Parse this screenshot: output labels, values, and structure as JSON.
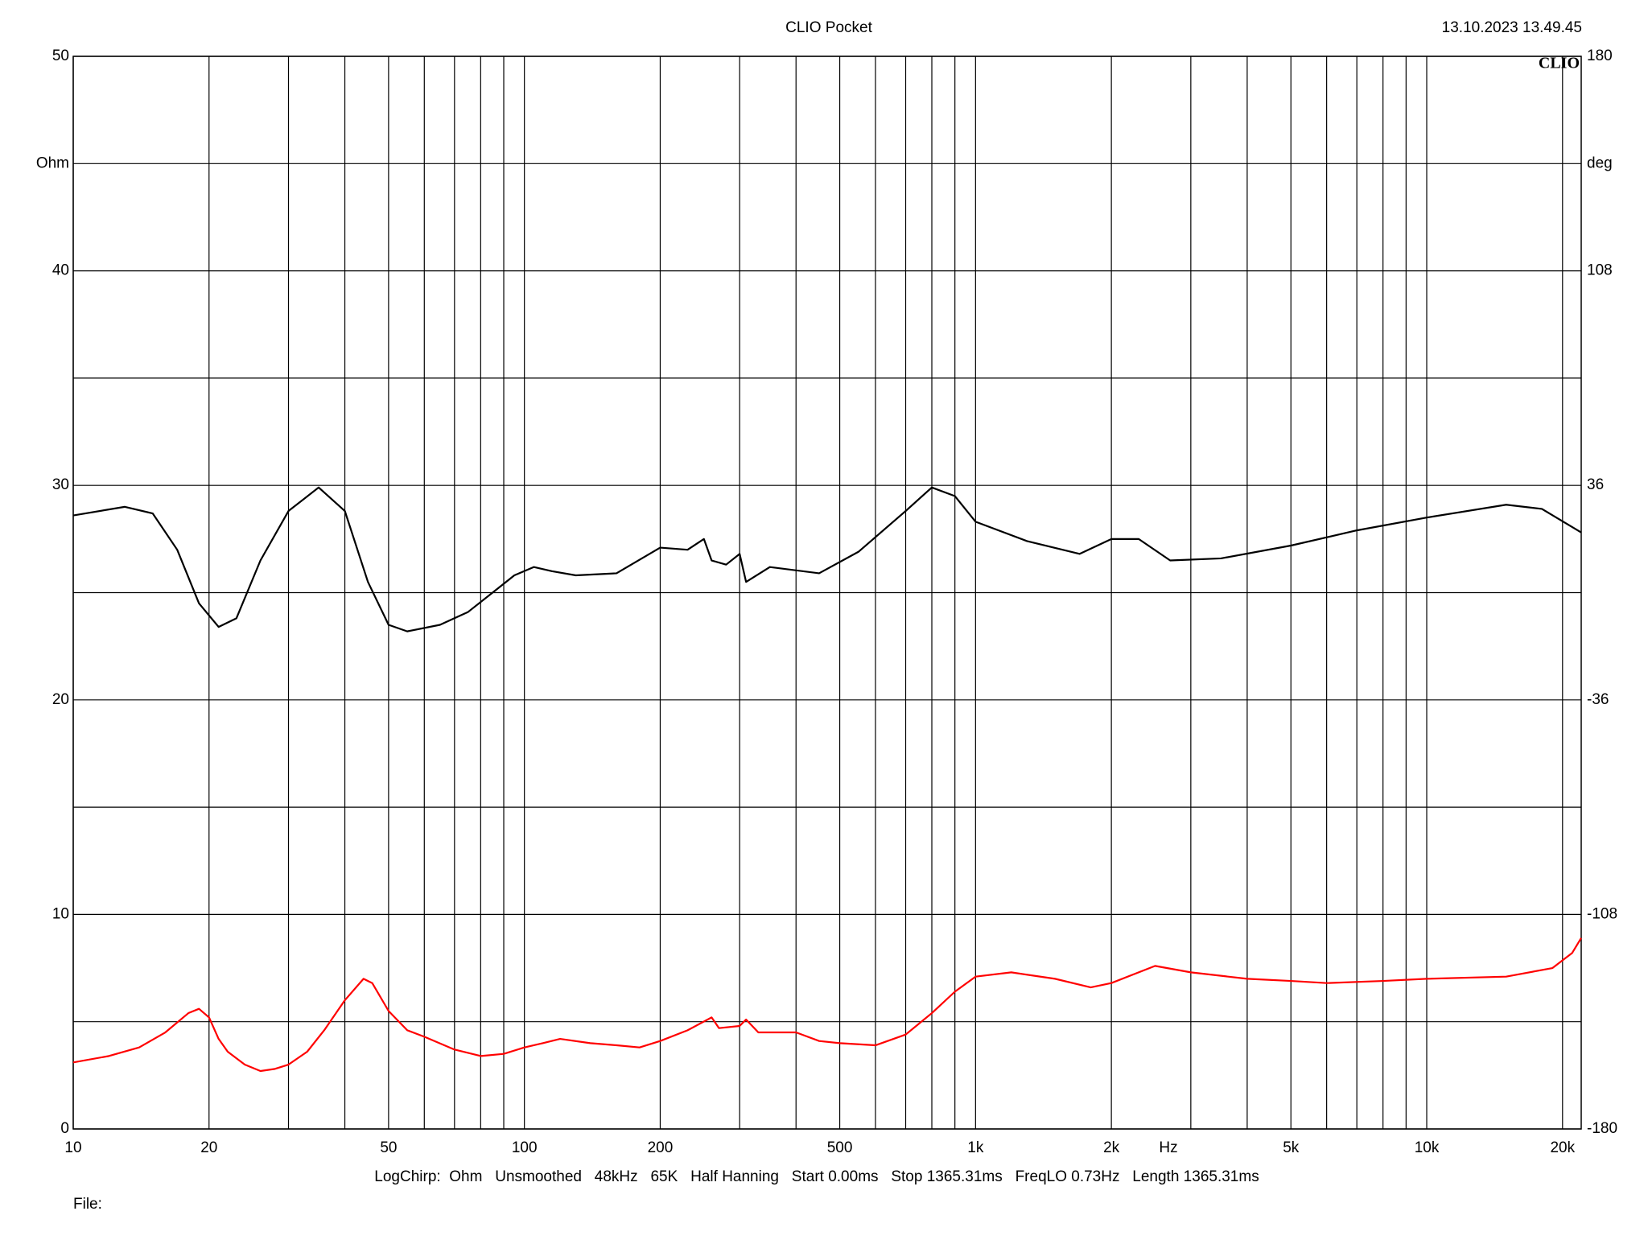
{
  "chart_data": {
    "type": "line",
    "title": "CLIO Pocket",
    "timestamp": "13.10.2023 13.49.45",
    "logo": "CLIO",
    "xlabel": "Hz",
    "ylabel": "Ohm",
    "y2label": "deg",
    "footer": "LogChirp:  Ohm   Unsmoothed   48kHz   65K   Half Hanning   Start 0.00ms   Stop 1365.31ms   FreqLO 0.73Hz   Length 1365.31ms",
    "file_label": "File:",
    "xscale": "log",
    "grid": true,
    "xlim": [
      10,
      22000
    ],
    "xticks": [
      10,
      20,
      50,
      100,
      200,
      500,
      {
        "value": 1000,
        "label": "1k"
      },
      {
        "value": 2000,
        "label": "2k"
      },
      {
        "value": 5000,
        "label": "5k"
      },
      {
        "value": 10000,
        "label": "10k"
      },
      {
        "value": 20000,
        "label": "20k"
      }
    ],
    "xgrid": [
      10,
      20,
      30,
      40,
      50,
      60,
      70,
      80,
      90,
      100,
      200,
      300,
      400,
      500,
      600,
      700,
      800,
      900,
      1000,
      2000,
      3000,
      4000,
      5000,
      6000,
      7000,
      8000,
      9000,
      10000,
      20000
    ],
    "ylim": [
      0,
      50
    ],
    "yticks": [
      0,
      10,
      20,
      30,
      40,
      50
    ],
    "ygrid": [
      5,
      15,
      25,
      35,
      45
    ],
    "y2lim": [
      -180,
      180
    ],
    "y2ticks": [
      -180,
      -108,
      -36,
      36,
      108,
      180
    ],
    "series": [
      {
        "color": "#ff0000",
        "axis": "y",
        "x": [
          10,
          12,
          14,
          16,
          18,
          19,
          20,
          21,
          22,
          24,
          26,
          28,
          30,
          33,
          36,
          40,
          44,
          46,
          50,
          55,
          60,
          70,
          80,
          90,
          100,
          110,
          120,
          140,
          160,
          180,
          200,
          230,
          260,
          270,
          300,
          310,
          330,
          400,
          450,
          500,
          600,
          700,
          800,
          900,
          1000,
          1200,
          1500,
          1800,
          2000,
          2500,
          3000,
          4000,
          5000,
          6000,
          8000,
          10000,
          15000,
          19000,
          21000,
          22000
        ],
        "values": [
          3.1,
          3.4,
          3.8,
          4.5,
          5.4,
          5.6,
          5.2,
          4.2,
          3.6,
          3.0,
          2.7,
          2.8,
          3.0,
          3.6,
          4.6,
          6.0,
          7.0,
          6.8,
          5.5,
          4.6,
          4.3,
          3.7,
          3.4,
          3.5,
          3.8,
          4.0,
          4.2,
          4.0,
          3.9,
          3.8,
          4.1,
          4.6,
          5.2,
          4.7,
          4.8,
          5.1,
          4.5,
          4.5,
          4.1,
          4.0,
          3.9,
          4.4,
          5.4,
          6.4,
          7.1,
          7.3,
          7.0,
          6.6,
          6.8,
          7.6,
          7.3,
          7.0,
          6.9,
          6.8,
          6.9,
          7.0,
          7.1,
          7.5,
          8.2,
          8.9
        ]
      },
      {
        "color": "#000000",
        "axis": "y2",
        "x": [
          10,
          13,
          15,
          17,
          19,
          21,
          23,
          26,
          30,
          35,
          40,
          45,
          50,
          55,
          65,
          75,
          85,
          95,
          105,
          115,
          130,
          160,
          200,
          230,
          250,
          260,
          280,
          300,
          310,
          350,
          450,
          550,
          700,
          800,
          900,
          1000,
          1300,
          1700,
          2000,
          2300,
          2700,
          3500,
          5000,
          7000,
          10000,
          15000,
          18000,
          22000
        ],
        "values": [
          25.9,
          28.8,
          26.6,
          14.4,
          -3.6,
          -11.5,
          -8.6,
          10.8,
          27.4,
          35.3,
          27.4,
          3.6,
          -10.8,
          -13.0,
          -10.8,
          -6.5,
          0,
          5.8,
          8.6,
          7.2,
          5.8,
          6.5,
          15.1,
          14.4,
          18,
          10.8,
          9.4,
          13.0,
          3.6,
          8.6,
          6.5,
          13.7,
          27.4,
          35.3,
          32.4,
          23.8,
          17.3,
          13.0,
          18,
          18,
          10.8,
          11.5,
          15.8,
          20.9,
          25.2,
          29.5,
          28.1,
          20.2
        ]
      }
    ]
  }
}
